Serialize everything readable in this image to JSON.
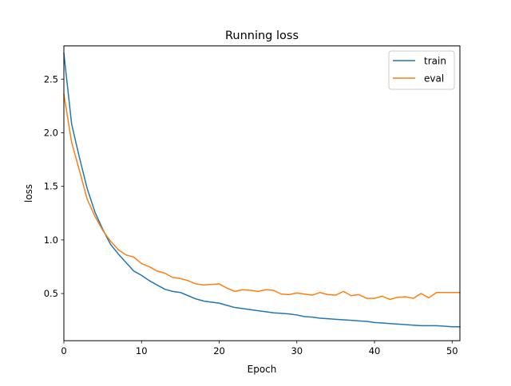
{
  "chart_data": {
    "type": "line",
    "title": "Running loss",
    "xlabel": "Epoch",
    "ylabel": "loss",
    "xlim": [
      0,
      51
    ],
    "ylim": [
      0.06,
      2.81
    ],
    "xticks": [
      0,
      10,
      20,
      30,
      40,
      50
    ],
    "yticks": [
      0.5,
      1.0,
      1.5,
      2.0,
      2.5
    ],
    "xtick_labels": [
      "0",
      "10",
      "20",
      "30",
      "40",
      "50"
    ],
    "ytick_labels": [
      "0.5",
      "1.0",
      "1.5",
      "2.0",
      "2.5"
    ],
    "grid": false,
    "legend_position": "top-right",
    "x": [
      0,
      1,
      2,
      3,
      4,
      5,
      6,
      7,
      8,
      9,
      10,
      11,
      12,
      13,
      14,
      15,
      16,
      17,
      18,
      19,
      20,
      21,
      22,
      23,
      24,
      25,
      26,
      27,
      28,
      29,
      30,
      31,
      32,
      33,
      34,
      35,
      36,
      37,
      38,
      39,
      40,
      41,
      42,
      43,
      44,
      45,
      46,
      47,
      48,
      49,
      50,
      51
    ],
    "series": [
      {
        "name": "train",
        "color": "#1f77b4",
        "values": [
          2.74,
          2.08,
          1.77,
          1.48,
          1.26,
          1.1,
          0.96,
          0.87,
          0.79,
          0.71,
          0.67,
          0.62,
          0.58,
          0.54,
          0.52,
          0.51,
          0.48,
          0.45,
          0.43,
          0.42,
          0.41,
          0.39,
          0.37,
          0.36,
          0.35,
          0.34,
          0.33,
          0.32,
          0.315,
          0.31,
          0.3,
          0.285,
          0.28,
          0.27,
          0.265,
          0.26,
          0.255,
          0.25,
          0.245,
          0.24,
          0.23,
          0.225,
          0.22,
          0.215,
          0.21,
          0.205,
          0.2,
          0.2,
          0.2,
          0.195,
          0.19,
          0.19
        ]
      },
      {
        "name": "eval",
        "color": "#ff7f0e",
        "values": [
          2.36,
          1.91,
          1.65,
          1.38,
          1.22,
          1.09,
          0.99,
          0.91,
          0.86,
          0.84,
          0.78,
          0.75,
          0.71,
          0.69,
          0.65,
          0.64,
          0.62,
          0.59,
          0.58,
          0.585,
          0.59,
          0.55,
          0.52,
          0.535,
          0.53,
          0.52,
          0.535,
          0.53,
          0.495,
          0.49,
          0.505,
          0.495,
          0.485,
          0.51,
          0.49,
          0.485,
          0.52,
          0.48,
          0.49,
          0.455,
          0.455,
          0.475,
          0.445,
          0.465,
          0.47,
          0.455,
          0.5,
          0.46,
          0.51,
          0.51,
          0.51,
          0.51
        ]
      }
    ]
  }
}
